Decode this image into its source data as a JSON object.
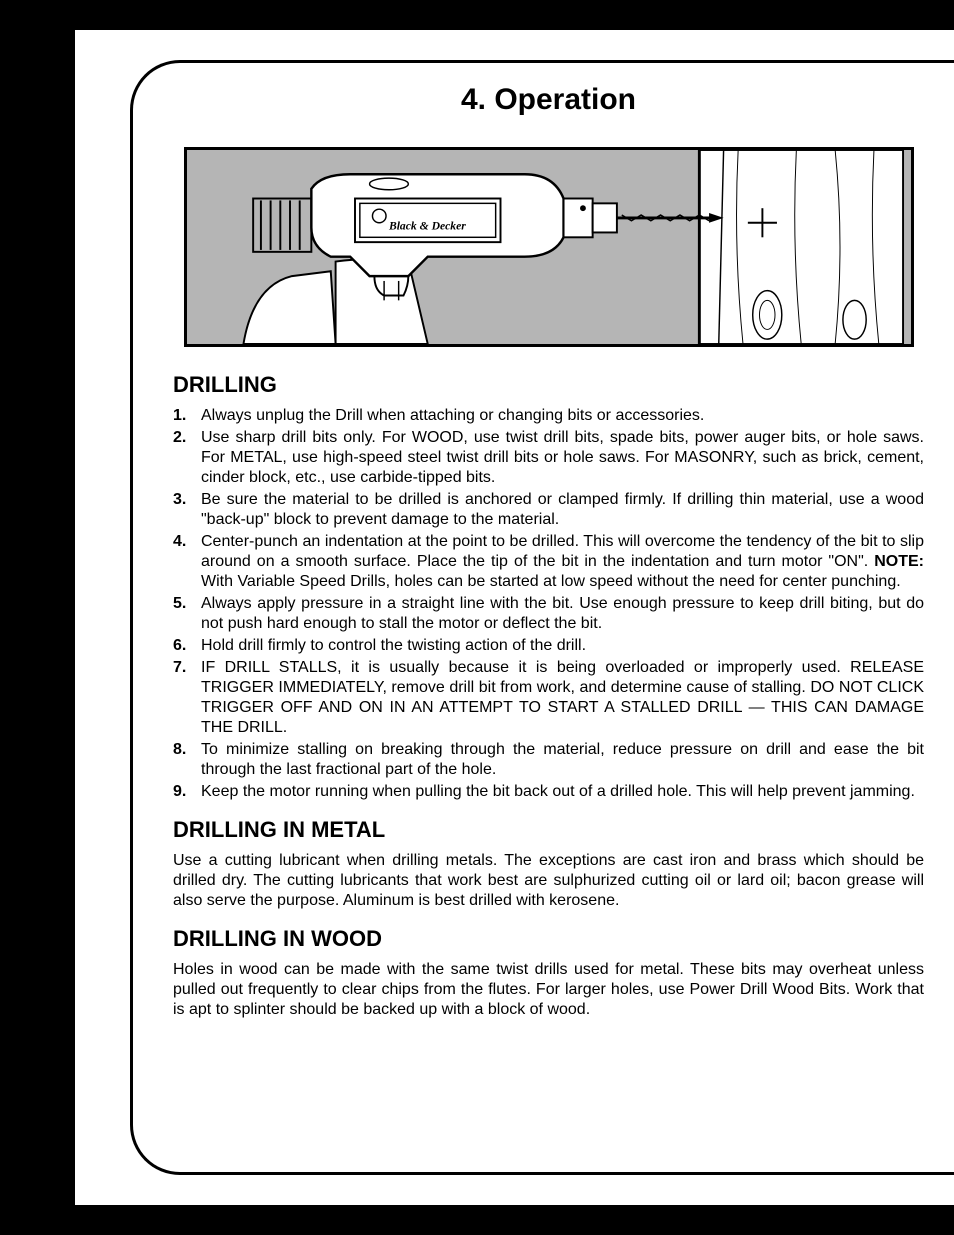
{
  "title": "4. Operation",
  "illustration": {
    "brand_label": "Black & Decker",
    "bg_color": "#b5b5b5",
    "drill_body_color": "#ffffff",
    "line_color": "#000000"
  },
  "sections": {
    "drilling": {
      "heading": "DRILLING",
      "items": [
        "Always unplug the Drill when attaching or changing bits or accessories.",
        "Use sharp drill bits only. For WOOD, use twist drill bits, spade bits, power auger bits, or hole saws. For METAL, use high-speed steel twist drill bits or hole saws. For MASONRY, such as brick, cement, cinder block, etc., use carbide-tipped bits.",
        "Be sure the material to be drilled is anchored or clamped firmly. If drilling thin material, use a wood \"back-up\" block to prevent damage to the material.",
        "Center-punch an indentation at the point to be drilled. This will overcome the tendency of the bit to slip around on a smooth surface. Place the tip of the bit in the indentation and turn motor \"ON\". <strong>NOTE:</strong> With Variable Speed Drills, holes can be started at low speed without the need for center punching.",
        "Always apply pressure in a straight line with the bit. Use enough pressure to keep drill biting, but do not push hard enough to stall the motor or deflect the bit.",
        "Hold drill firmly to control the twisting action of the drill.",
        "IF DRILL STALLS, it is usually because it is being overloaded or improperly used. RELEASE TRIGGER IMMEDIATELY, remove drill bit from work, and determine cause of stalling. DO NOT CLICK TRIGGER OFF AND ON IN AN ATTEMPT TO START A STALLED DRILL — THIS CAN DAMAGE THE DRILL.",
        "To minimize stalling on breaking through the material, reduce pressure on drill and ease the bit through the last fractional part of the hole.",
        "Keep the motor running when pulling the bit back out of a drilled hole. This will help prevent jamming."
      ]
    },
    "metal": {
      "heading": "DRILLING IN METAL",
      "text": "Use a cutting lubricant when drilling metals. The exceptions are cast iron and brass which should be drilled dry. The cutting lubricants that work best are sulphurized cutting oil or lard oil; bacon grease will also serve the purpose. Aluminum is best drilled with kerosene."
    },
    "wood": {
      "heading": "DRILLING IN WOOD",
      "text": "Holes in wood can be made with the same twist drills used for metal. These bits may overheat unless pulled out frequently to clear chips from the flutes. For larger holes, use Power Drill Wood Bits. Work that is apt to splinter should be backed up with a block of wood."
    }
  }
}
